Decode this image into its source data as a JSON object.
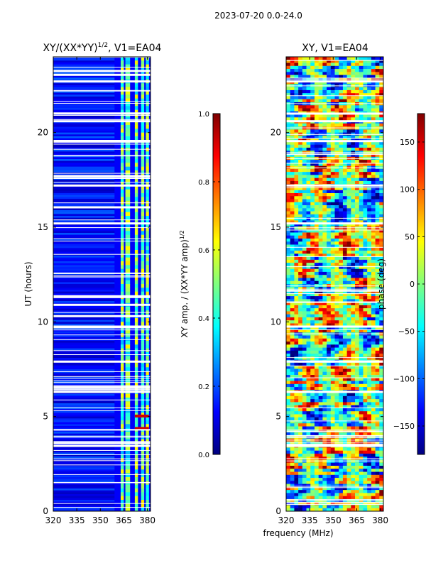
{
  "suptitle": "2023-07-20 0.0-24.0",
  "shared_xlabel": "frequency (MHz)",
  "chart_data": [
    {
      "type": "heatmap",
      "id": "amp",
      "title_main": "XY/(XX*YY)",
      "title_exp": "1/2",
      "title_suffix": ", V1=EA04",
      "xlabel": "",
      "ylabel": "UT (hours)",
      "xlim": [
        320,
        382
      ],
      "ylim": [
        0,
        24
      ],
      "xticks": [
        320,
        335,
        350,
        365,
        380
      ],
      "yticks": [
        0,
        5,
        10,
        15,
        20
      ],
      "ytick_labels": [
        "0",
        "5",
        "10",
        "15",
        "20"
      ],
      "colormap": "jet",
      "colorbar": {
        "label_main": "XY amp. / (XX*YY amp)",
        "label_exp": "1/2",
        "range": [
          0.0,
          1.0
        ],
        "ticks": [
          0.0,
          0.2,
          0.4,
          0.6,
          0.8,
          1.0
        ],
        "tick_labels": [
          "0.0",
          "0.2",
          "0.4",
          "0.6",
          "0.8",
          "1.0"
        ]
      },
      "bright_bands_mhz": [
        [
          363,
          365
        ],
        [
          366,
          369
        ],
        [
          372,
          374
        ],
        [
          376,
          378
        ],
        [
          379,
          381
        ]
      ],
      "gap_hours": [
        3.45,
        3.6,
        6.3,
        6.55,
        7.9,
        9.75,
        10.3,
        10.9,
        11.35,
        15.2,
        16.05,
        17.2,
        17.7,
        19.55,
        20.6,
        21.0,
        22.7,
        23.05,
        23.25
      ]
    },
    {
      "type": "heatmap",
      "id": "phase",
      "title_main": "XY, V1=EA04",
      "xlabel": "frequency (MHz)",
      "ylabel": "",
      "xlim": [
        320,
        382
      ],
      "ylim": [
        0,
        24
      ],
      "xticks": [
        320,
        335,
        350,
        365,
        380
      ],
      "yticks": [
        0,
        5,
        10,
        15,
        20
      ],
      "ytick_labels": [
        "0",
        "5",
        "10",
        "15",
        "20"
      ],
      "colormap": "jet",
      "colorbar": {
        "label_main": "phase (deg)",
        "range": [
          -180,
          180
        ],
        "ticks": [
          -150,
          -100,
          -50,
          0,
          50,
          100,
          150
        ],
        "tick_labels": [
          "−150",
          "−100",
          "−50",
          "0",
          "50",
          "100",
          "150"
        ]
      },
      "gap_hours": [
        3.45,
        6.3,
        7.9,
        9.75,
        15.2,
        17.2,
        19.55,
        20.6,
        21.0,
        22.7
      ]
    }
  ]
}
